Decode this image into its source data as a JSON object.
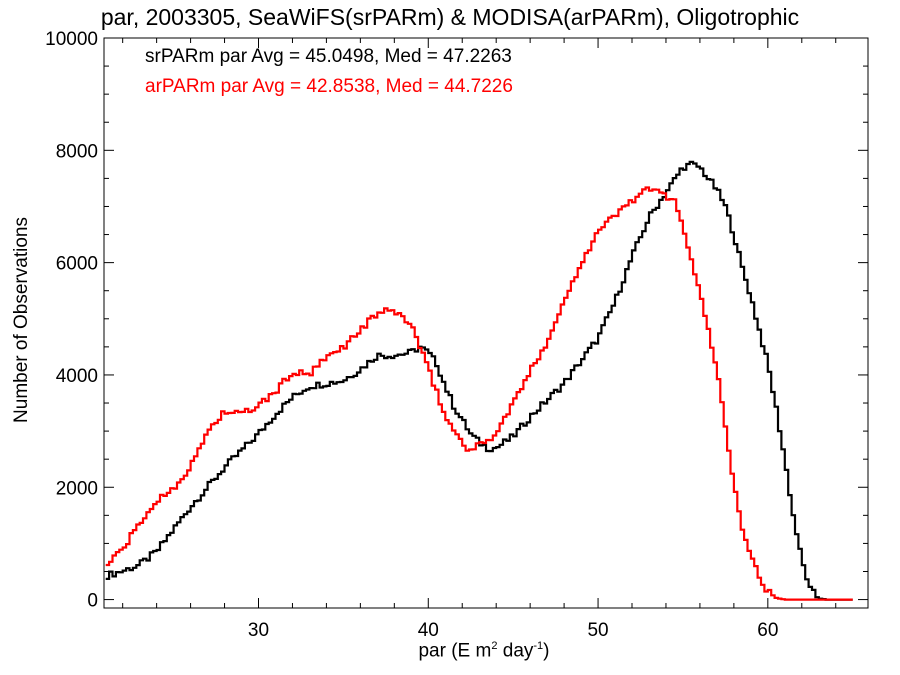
{
  "chart_data": {
    "type": "line",
    "title": "par, 2003305, SeaWiFS(srPARm) & MODISA(arPARm), Oligotrophic",
    "xlabel_main": "par (E m",
    "xlabel_sup1": "2",
    "xlabel_mid": " day",
    "xlabel_sup2": "-1",
    "xlabel_end": ")",
    "ylabel": "Number of Observations",
    "xlim": [
      20.9,
      65.9
    ],
    "ylim": [
      -150,
      10000
    ],
    "xticks": [
      30,
      40,
      50,
      60
    ],
    "yticks": [
      0,
      2000,
      4000,
      6000,
      8000,
      10000
    ],
    "grid": false,
    "step": true,
    "series": [
      {
        "name": "srPARm",
        "color": "#000000",
        "annotation": "srPARm par Avg = 45.0498, Med = 47.2263",
        "points": [
          [
            21,
            420
          ],
          [
            22,
            510
          ],
          [
            23,
            620
          ],
          [
            24,
            850
          ],
          [
            25,
            1250
          ],
          [
            26,
            1650
          ],
          [
            27,
            2000
          ],
          [
            28,
            2350
          ],
          [
            29,
            2650
          ],
          [
            30,
            2950
          ],
          [
            31,
            3300
          ],
          [
            32,
            3600
          ],
          [
            33,
            3800
          ],
          [
            34,
            3850
          ],
          [
            35,
            3900
          ],
          [
            36,
            4100
          ],
          [
            37,
            4350
          ],
          [
            38,
            4350
          ],
          [
            39,
            4400
          ],
          [
            39.5,
            4500
          ],
          [
            40,
            4400
          ],
          [
            40.5,
            4200
          ],
          [
            41,
            3800
          ],
          [
            41.5,
            3450
          ],
          [
            42,
            3200
          ],
          [
            42.5,
            2950
          ],
          [
            43,
            2800
          ],
          [
            43.5,
            2700
          ],
          [
            44,
            2700
          ],
          [
            45,
            2900
          ],
          [
            46,
            3250
          ],
          [
            47,
            3550
          ],
          [
            48,
            3850
          ],
          [
            49,
            4250
          ],
          [
            50,
            4650
          ],
          [
            51,
            5300
          ],
          [
            52,
            6100
          ],
          [
            53,
            6800
          ],
          [
            54,
            7250
          ],
          [
            55,
            7700
          ],
          [
            55.5,
            7750
          ],
          [
            56,
            7700
          ],
          [
            56.5,
            7500
          ],
          [
            57,
            7300
          ],
          [
            57.5,
            7000
          ],
          [
            58,
            6500
          ],
          [
            58.5,
            5900
          ],
          [
            59,
            5400
          ],
          [
            59.5,
            4800
          ],
          [
            60,
            4200
          ],
          [
            60.5,
            3400
          ],
          [
            61,
            2500
          ],
          [
            61.5,
            1500
          ],
          [
            62,
            700
          ],
          [
            62.5,
            180
          ],
          [
            63,
            20
          ],
          [
            63.5,
            0
          ],
          [
            65,
            0
          ]
        ]
      },
      {
        "name": "arPARm",
        "color": "#ff0000",
        "annotation": "arPARm par Avg = 42.8538, Med = 44.7226",
        "points": [
          [
            21,
            600
          ],
          [
            22,
            900
          ],
          [
            23,
            1350
          ],
          [
            24,
            1750
          ],
          [
            25,
            2000
          ],
          [
            26,
            2350
          ],
          [
            27,
            3000
          ],
          [
            28,
            3350
          ],
          [
            29,
            3300
          ],
          [
            30,
            3450
          ],
          [
            31,
            3700
          ],
          [
            32,
            4050
          ],
          [
            33,
            4000
          ],
          [
            34,
            4300
          ],
          [
            35,
            4500
          ],
          [
            36,
            4800
          ],
          [
            37,
            5100
          ],
          [
            38,
            5150
          ],
          [
            39,
            4900
          ],
          [
            39.5,
            4500
          ],
          [
            40,
            4100
          ],
          [
            40.5,
            3700
          ],
          [
            41,
            3250
          ],
          [
            42,
            2800
          ],
          [
            42.5,
            2650
          ],
          [
            43,
            2750
          ],
          [
            44,
            2950
          ],
          [
            45,
            3500
          ],
          [
            46,
            4050
          ],
          [
            47,
            4600
          ],
          [
            48,
            5300
          ],
          [
            49,
            6000
          ],
          [
            50,
            6550
          ],
          [
            51,
            6850
          ],
          [
            52,
            7100
          ],
          [
            52.5,
            7250
          ],
          [
            53,
            7300
          ],
          [
            54,
            7200
          ],
          [
            54.5,
            7100
          ],
          [
            55,
            6700
          ],
          [
            55.5,
            6000
          ],
          [
            56,
            5500
          ],
          [
            56.5,
            4800
          ],
          [
            57,
            4100
          ],
          [
            57.5,
            3100
          ],
          [
            58,
            2100
          ],
          [
            58.5,
            1300
          ],
          [
            59,
            800
          ],
          [
            59.5,
            400
          ],
          [
            60,
            150
          ],
          [
            60.5,
            30
          ],
          [
            61,
            0
          ],
          [
            62,
            0
          ],
          [
            65,
            0
          ]
        ]
      }
    ]
  }
}
